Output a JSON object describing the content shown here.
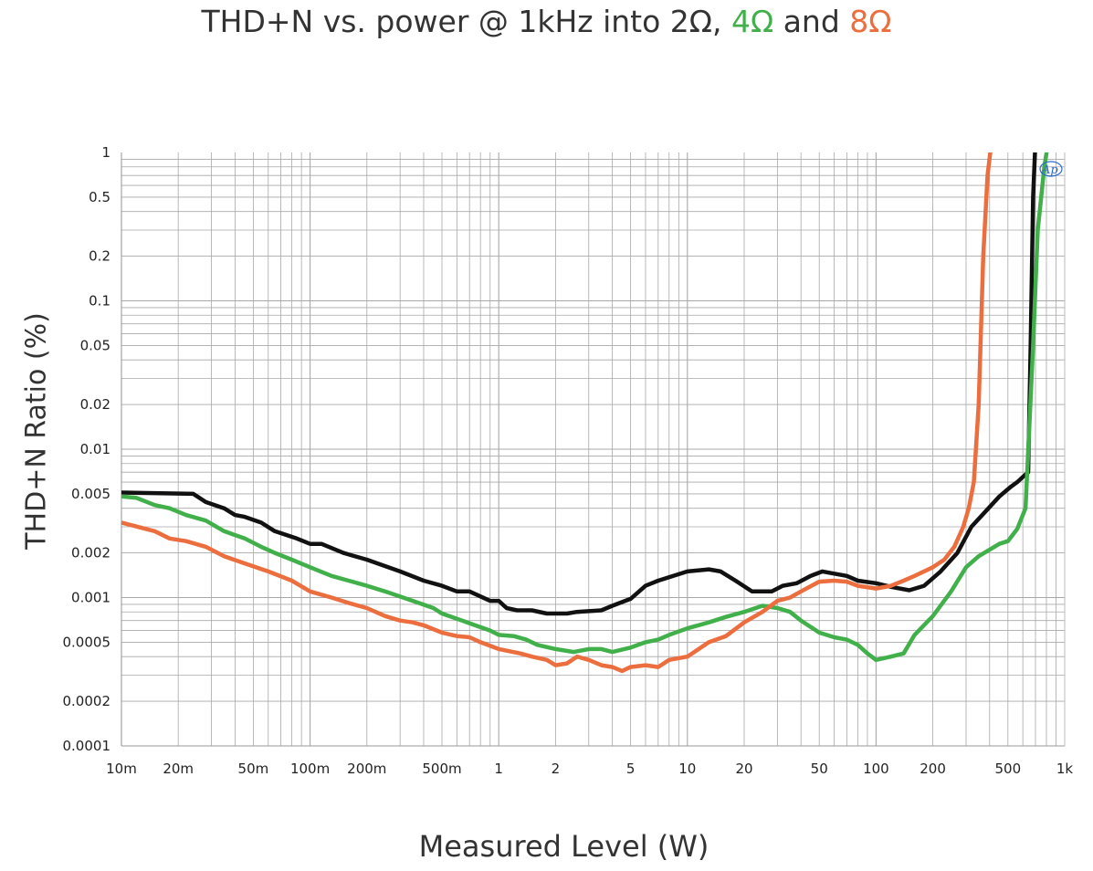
{
  "chart_data": {
    "type": "line",
    "title": {
      "prefix": "THD+N vs. power @ 1kHz into 2Ω, ",
      "part_4ohm": "4Ω",
      "middle": " and ",
      "part_8ohm": "8Ω"
    },
    "xlabel": "Measured Level (W)",
    "ylabel": "THD+N Ratio (%)",
    "x_scale": "log",
    "y_scale": "log",
    "xlim": [
      0.01,
      1000
    ],
    "ylim": [
      0.0001,
      1
    ],
    "grid": true,
    "x_ticks": [
      {
        "value": 0.01,
        "label": "10m"
      },
      {
        "value": 0.02,
        "label": "20m"
      },
      {
        "value": 0.05,
        "label": "50m"
      },
      {
        "value": 0.1,
        "label": "100m"
      },
      {
        "value": 0.2,
        "label": "200m"
      },
      {
        "value": 0.5,
        "label": "500m"
      },
      {
        "value": 1,
        "label": "1"
      },
      {
        "value": 2,
        "label": "2"
      },
      {
        "value": 5,
        "label": "5"
      },
      {
        "value": 10,
        "label": "10"
      },
      {
        "value": 20,
        "label": "20"
      },
      {
        "value": 50,
        "label": "50"
      },
      {
        "value": 100,
        "label": "100"
      },
      {
        "value": 200,
        "label": "200"
      },
      {
        "value": 500,
        "label": "500"
      },
      {
        "value": 1000,
        "label": "1k"
      }
    ],
    "y_ticks": [
      {
        "value": 1,
        "label": "1"
      },
      {
        "value": 0.5,
        "label": "0.5"
      },
      {
        "value": 0.2,
        "label": "0.2"
      },
      {
        "value": 0.1,
        "label": "0.1"
      },
      {
        "value": 0.05,
        "label": "0.05"
      },
      {
        "value": 0.02,
        "label": "0.02"
      },
      {
        "value": 0.01,
        "label": "0.01"
      },
      {
        "value": 0.005,
        "label": "0.005"
      },
      {
        "value": 0.002,
        "label": "0.002"
      },
      {
        "value": 0.001,
        "label": "0.001"
      },
      {
        "value": 0.0005,
        "label": "0.0005"
      },
      {
        "value": 0.0002,
        "label": "0.0002"
      },
      {
        "value": 0.0001,
        "label": "0.0001"
      }
    ],
    "logo_text": "Ap",
    "series": [
      {
        "color": "#111111",
        "points": [
          [
            0.01,
            0.0051
          ],
          [
            0.024,
            0.005
          ],
          [
            0.028,
            0.0044
          ],
          [
            0.035,
            0.004
          ],
          [
            0.04,
            0.0036
          ],
          [
            0.045,
            0.0035
          ],
          [
            0.055,
            0.0032
          ],
          [
            0.065,
            0.0028
          ],
          [
            0.085,
            0.0025
          ],
          [
            0.1,
            0.0023
          ],
          [
            0.115,
            0.0023
          ],
          [
            0.15,
            0.002
          ],
          [
            0.2,
            0.0018
          ],
          [
            0.3,
            0.0015
          ],
          [
            0.4,
            0.0013
          ],
          [
            0.5,
            0.0012
          ],
          [
            0.6,
            0.0011
          ],
          [
            0.7,
            0.0011
          ],
          [
            0.9,
            0.00095
          ],
          [
            1.0,
            0.00095
          ],
          [
            1.1,
            0.00085
          ],
          [
            1.25,
            0.00082
          ],
          [
            1.5,
            0.00082
          ],
          [
            1.8,
            0.00078
          ],
          [
            2.3,
            0.00078
          ],
          [
            2.6,
            0.0008
          ],
          [
            3.5,
            0.00082
          ],
          [
            4.0,
            0.00088
          ],
          [
            5.0,
            0.00098
          ],
          [
            6.0,
            0.0012
          ],
          [
            7.0,
            0.0013
          ],
          [
            10,
            0.0015
          ],
          [
            13,
            0.00155
          ],
          [
            15,
            0.0015
          ],
          [
            18,
            0.0013
          ],
          [
            22,
            0.0011
          ],
          [
            28,
            0.0011
          ],
          [
            32,
            0.0012
          ],
          [
            38,
            0.00125
          ],
          [
            45,
            0.0014
          ],
          [
            52,
            0.0015
          ],
          [
            60,
            0.00145
          ],
          [
            70,
            0.0014
          ],
          [
            80,
            0.0013
          ],
          [
            100,
            0.00125
          ],
          [
            120,
            0.00118
          ],
          [
            150,
            0.00112
          ],
          [
            180,
            0.0012
          ],
          [
            220,
            0.0015
          ],
          [
            270,
            0.002
          ],
          [
            320,
            0.003
          ],
          [
            380,
            0.0038
          ],
          [
            450,
            0.0048
          ],
          [
            520,
            0.0056
          ],
          [
            560,
            0.006
          ],
          [
            600,
            0.0065
          ],
          [
            640,
            0.007
          ],
          [
            660,
            0.05
          ],
          [
            680,
            0.5
          ],
          [
            700,
            1.2
          ]
        ]
      },
      {
        "color": "#41b04a",
        "points": [
          [
            0.01,
            0.0048
          ],
          [
            0.012,
            0.0047
          ],
          [
            0.015,
            0.0042
          ],
          [
            0.018,
            0.004
          ],
          [
            0.022,
            0.0036
          ],
          [
            0.028,
            0.0033
          ],
          [
            0.035,
            0.0028
          ],
          [
            0.045,
            0.0025
          ],
          [
            0.055,
            0.0022
          ],
          [
            0.065,
            0.002
          ],
          [
            0.08,
            0.0018
          ],
          [
            0.1,
            0.0016
          ],
          [
            0.13,
            0.0014
          ],
          [
            0.16,
            0.0013
          ],
          [
            0.2,
            0.0012
          ],
          [
            0.25,
            0.0011
          ],
          [
            0.35,
            0.00095
          ],
          [
            0.45,
            0.00085
          ],
          [
            0.5,
            0.00078
          ],
          [
            0.6,
            0.00072
          ],
          [
            0.75,
            0.00065
          ],
          [
            0.9,
            0.0006
          ],
          [
            1.0,
            0.00056
          ],
          [
            1.2,
            0.00055
          ],
          [
            1.4,
            0.00052
          ],
          [
            1.6,
            0.00048
          ],
          [
            2.0,
            0.00045
          ],
          [
            2.5,
            0.00043
          ],
          [
            3.0,
            0.00045
          ],
          [
            3.5,
            0.00045
          ],
          [
            4.0,
            0.00043
          ],
          [
            5.0,
            0.00046
          ],
          [
            6.0,
            0.0005
          ],
          [
            7.0,
            0.00052
          ],
          [
            8.0,
            0.00056
          ],
          [
            10,
            0.00062
          ],
          [
            13,
            0.00068
          ],
          [
            16,
            0.00074
          ],
          [
            20,
            0.0008
          ],
          [
            25,
            0.00088
          ],
          [
            30,
            0.00085
          ],
          [
            35,
            0.0008
          ],
          [
            40,
            0.0007
          ],
          [
            50,
            0.00058
          ],
          [
            60,
            0.00054
          ],
          [
            70,
            0.00052
          ],
          [
            80,
            0.00048
          ],
          [
            90,
            0.00042
          ],
          [
            100,
            0.00038
          ],
          [
            120,
            0.0004
          ],
          [
            140,
            0.00042
          ],
          [
            160,
            0.00056
          ],
          [
            200,
            0.00075
          ],
          [
            250,
            0.0011
          ],
          [
            300,
            0.0016
          ],
          [
            350,
            0.0019
          ],
          [
            400,
            0.0021
          ],
          [
            450,
            0.0023
          ],
          [
            500,
            0.0024
          ],
          [
            560,
            0.0029
          ],
          [
            620,
            0.004
          ],
          [
            680,
            0.05
          ],
          [
            720,
            0.3
          ],
          [
            780,
            0.8
          ],
          [
            820,
            1.2
          ]
        ]
      },
      {
        "color": "#ec6d3d",
        "points": [
          [
            0.01,
            0.0032
          ],
          [
            0.015,
            0.0028
          ],
          [
            0.018,
            0.0025
          ],
          [
            0.022,
            0.0024
          ],
          [
            0.028,
            0.0022
          ],
          [
            0.035,
            0.0019
          ],
          [
            0.045,
            0.0017
          ],
          [
            0.06,
            0.0015
          ],
          [
            0.08,
            0.0013
          ],
          [
            0.1,
            0.0011
          ],
          [
            0.13,
            0.001
          ],
          [
            0.16,
            0.00092
          ],
          [
            0.2,
            0.00085
          ],
          [
            0.25,
            0.00075
          ],
          [
            0.3,
            0.0007
          ],
          [
            0.35,
            0.00068
          ],
          [
            0.4,
            0.00065
          ],
          [
            0.5,
            0.00058
          ],
          [
            0.6,
            0.00055
          ],
          [
            0.7,
            0.00054
          ],
          [
            0.8,
            0.0005
          ],
          [
            1.0,
            0.00045
          ],
          [
            1.3,
            0.00042
          ],
          [
            1.5,
            0.0004
          ],
          [
            1.8,
            0.00038
          ],
          [
            2.0,
            0.00035
          ],
          [
            2.3,
            0.00036
          ],
          [
            2.6,
            0.0004
          ],
          [
            3.0,
            0.00038
          ],
          [
            3.5,
            0.00035
          ],
          [
            4.0,
            0.00034
          ],
          [
            4.5,
            0.00032
          ],
          [
            5.0,
            0.00034
          ],
          [
            6.0,
            0.00035
          ],
          [
            7.0,
            0.00034
          ],
          [
            8.0,
            0.00038
          ],
          [
            10,
            0.0004
          ],
          [
            13,
            0.0005
          ],
          [
            16,
            0.00055
          ],
          [
            20,
            0.00068
          ],
          [
            25,
            0.0008
          ],
          [
            30,
            0.00095
          ],
          [
            35,
            0.001
          ],
          [
            40,
            0.0011
          ],
          [
            50,
            0.00128
          ],
          [
            60,
            0.0013
          ],
          [
            70,
            0.00128
          ],
          [
            80,
            0.0012
          ],
          [
            100,
            0.00115
          ],
          [
            120,
            0.0012
          ],
          [
            140,
            0.0013
          ],
          [
            160,
            0.0014
          ],
          [
            200,
            0.0016
          ],
          [
            230,
            0.0018
          ],
          [
            260,
            0.0022
          ],
          [
            290,
            0.003
          ],
          [
            310,
            0.004
          ],
          [
            330,
            0.006
          ],
          [
            350,
            0.02
          ],
          [
            370,
            0.2
          ],
          [
            390,
            0.7
          ],
          [
            410,
            1.2
          ]
        ]
      }
    ]
  }
}
